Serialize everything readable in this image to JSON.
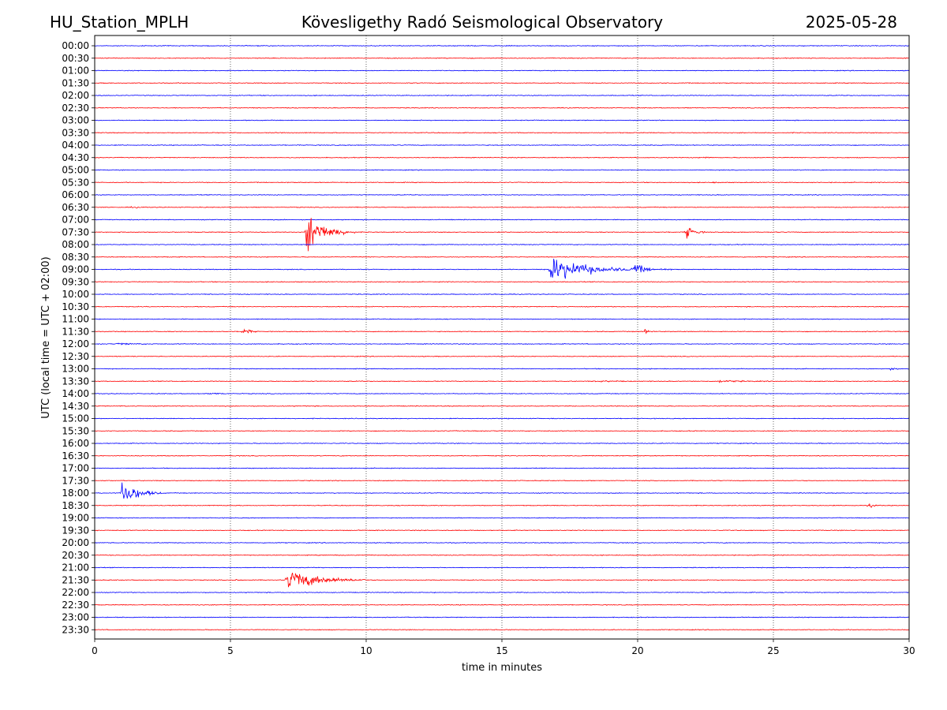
{
  "header": {
    "station": "HU_Station_MPLH",
    "observatory": "Kövesligethy Radó Seismological Observatory",
    "date": "2025-05-28"
  },
  "chart_data": {
    "type": "line",
    "title": "Kövesligethy Radó Seismological Observatory",
    "xlabel": "time in minutes",
    "ylabel": "UTC (local time = UTC + 02:00)",
    "xlim": [
      0,
      30
    ],
    "x_ticks": [
      "0",
      "5",
      "10",
      "15",
      "20",
      "25",
      "30"
    ],
    "x_tick_values": [
      0,
      5,
      10,
      15,
      20,
      25,
      30
    ],
    "grid": "vertical dotted at x ticks",
    "trace_colors": [
      "#0000ff",
      "#ff0000"
    ],
    "rows": [
      "00:00",
      "00:30",
      "01:00",
      "01:30",
      "02:00",
      "02:30",
      "03:00",
      "03:30",
      "04:00",
      "04:30",
      "05:00",
      "05:30",
      "06:00",
      "06:30",
      "07:00",
      "07:30",
      "08:00",
      "08:30",
      "09:00",
      "09:30",
      "10:00",
      "10:30",
      "11:00",
      "11:30",
      "12:00",
      "12:30",
      "13:00",
      "13:30",
      "14:00",
      "14:30",
      "15:00",
      "15:30",
      "16:00",
      "16:30",
      "17:00",
      "17:30",
      "18:00",
      "18:30",
      "19:00",
      "19:30",
      "20:00",
      "20:30",
      "21:00",
      "21:30",
      "22:00",
      "22:30",
      "23:00",
      "23:30"
    ],
    "events": [
      {
        "row": "04:30",
        "start": 22.4,
        "duration": 0.6,
        "amp": 0.25
      },
      {
        "row": "05:30",
        "start": 22.8,
        "duration": 0.5,
        "amp": 0.15
      },
      {
        "row": "06:30",
        "start": 1.4,
        "duration": 0.5,
        "amp": 0.2
      },
      {
        "row": "07:30",
        "start": 7.8,
        "duration": 1.8,
        "amp": 4.5
      },
      {
        "row": "07:30",
        "start": 21.8,
        "duration": 0.7,
        "amp": 1.5
      },
      {
        "row": "09:00",
        "start": 16.8,
        "duration": 3.5,
        "amp": 2.8
      },
      {
        "row": "09:00",
        "start": 19.8,
        "duration": 1.5,
        "amp": 1.0
      },
      {
        "row": "10:00",
        "start": 14.8,
        "duration": 0.4,
        "amp": 0.2
      },
      {
        "row": "11:30",
        "start": 5.5,
        "duration": 0.5,
        "amp": 1.0
      },
      {
        "row": "11:30",
        "start": 20.2,
        "duration": 0.6,
        "amp": 0.5
      },
      {
        "row": "12:00",
        "start": 0.8,
        "duration": 1.5,
        "amp": 0.2
      },
      {
        "row": "13:00",
        "start": 29.3,
        "duration": 0.7,
        "amp": 0.25
      },
      {
        "row": "13:30",
        "start": 18.5,
        "duration": 1.5,
        "amp": 0.2
      },
      {
        "row": "13:30",
        "start": 23.0,
        "duration": 2.0,
        "amp": 0.2
      },
      {
        "row": "14:00",
        "start": 4.3,
        "duration": 0.7,
        "amp": 0.2
      },
      {
        "row": "18:00",
        "start": 1.0,
        "duration": 1.5,
        "amp": 3.0
      },
      {
        "row": "18:30",
        "start": 28.5,
        "duration": 0.5,
        "amp": 0.5
      },
      {
        "row": "21:30",
        "start": 5.2,
        "duration": 0.3,
        "amp": 0.3
      },
      {
        "row": "21:30",
        "start": 7.1,
        "duration": 3.0,
        "amp": 2.5
      },
      {
        "row": "21:30",
        "start": 20.4,
        "duration": 0.5,
        "amp": 0.2
      }
    ]
  }
}
